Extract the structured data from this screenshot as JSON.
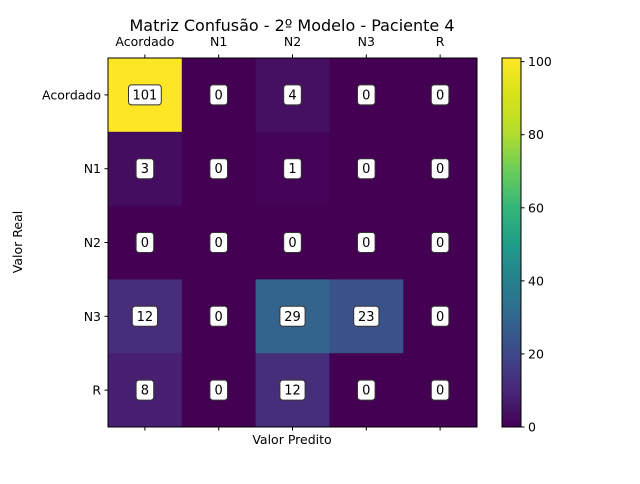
{
  "chart_data": {
    "type": "heatmap",
    "title": "Matriz Confusão - 2º Modelo - Paciente 4",
    "xlabel": "Valor Predito",
    "ylabel": "Valor Real",
    "x_categories": [
      "Acordado",
      "N1",
      "N2",
      "N3",
      "R"
    ],
    "y_categories": [
      "Acordado",
      "N1",
      "N2",
      "N3",
      "R"
    ],
    "values": [
      [
        101,
        0,
        4,
        0,
        0
      ],
      [
        3,
        0,
        1,
        0,
        0
      ],
      [
        0,
        0,
        0,
        0,
        0
      ],
      [
        12,
        0,
        29,
        23,
        0
      ],
      [
        8,
        0,
        12,
        0,
        0
      ]
    ],
    "colorbar": {
      "range": [
        0,
        101
      ],
      "ticks": [
        0,
        20,
        40,
        60,
        80,
        100
      ],
      "colormap": "viridis"
    },
    "x_axis_position": "top",
    "grid": false
  }
}
